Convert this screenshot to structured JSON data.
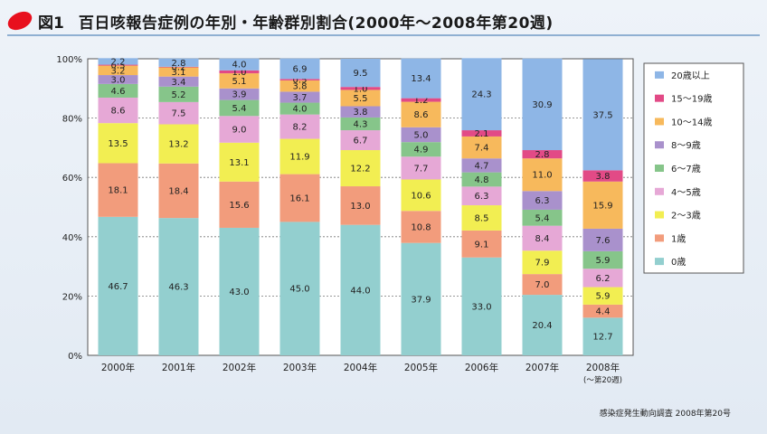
{
  "figure": {
    "label": "図1",
    "title": "百日咳報告症例の年別・年齢群別割合(2000年〜2008年第20週)",
    "source": "感染症発生動向調査 2008年第20号"
  },
  "chart_data": {
    "type": "bar",
    "stacked": true,
    "percent": true,
    "title": "百日咳報告症例の年別・年齢群別割合(2000年〜2008年第20週)",
    "categories": [
      "2000年",
      "2001年",
      "2002年",
      "2003年",
      "2004年",
      "2005年",
      "2006年",
      "2007年",
      "2008年"
    ],
    "category_sublabels": [
      "",
      "",
      "",
      "",
      "",
      "",
      "",
      "",
      "(〜第20週)"
    ],
    "ylim": [
      0,
      100
    ],
    "yticks": [
      "0%",
      "20%",
      "40%",
      "60%",
      "80%",
      "100%"
    ],
    "legend_position": "right",
    "series": [
      {
        "name": "0歳",
        "color": "#93cfcf",
        "values": [
          46.7,
          46.3,
          43.0,
          45.0,
          44.0,
          37.9,
          33.0,
          20.4,
          12.7
        ]
      },
      {
        "name": "1歳",
        "color": "#f29c7c",
        "values": [
          18.1,
          18.4,
          15.6,
          16.1,
          13.0,
          10.8,
          9.1,
          7.0,
          4.4
        ]
      },
      {
        "name": "2〜3歳",
        "color": "#f2ee52",
        "values": [
          13.5,
          13.2,
          13.1,
          11.9,
          12.2,
          10.6,
          8.5,
          7.9,
          5.9
        ]
      },
      {
        "name": "4〜5歳",
        "color": "#e6a8d6",
        "values": [
          8.6,
          7.5,
          9.0,
          8.2,
          6.7,
          7.7,
          6.3,
          8.4,
          6.2
        ]
      },
      {
        "name": "6〜7歳",
        "color": "#86c58a",
        "values": [
          4.6,
          5.2,
          5.4,
          4.0,
          4.3,
          4.9,
          4.8,
          5.4,
          5.9
        ]
      },
      {
        "name": "8〜9歳",
        "color": "#a991cc",
        "values": [
          3.0,
          3.4,
          3.9,
          3.7,
          3.8,
          5.0,
          4.7,
          6.3,
          7.6
        ]
      },
      {
        "name": "10〜14歳",
        "color": "#f7b95c",
        "values": [
          3.2,
          3.1,
          5.1,
          3.8,
          5.5,
          8.6,
          7.4,
          11.0,
          15.9
        ]
      },
      {
        "name": "15〜19歳",
        "color": "#e24a86",
        "values": [
          0.3,
          0.2,
          1.0,
          0.5,
          1.0,
          1.2,
          2.1,
          2.8,
          3.8
        ]
      },
      {
        "name": "20歳以上",
        "color": "#8eb6e6",
        "values": [
          2.2,
          2.8,
          4.0,
          6.9,
          9.5,
          13.4,
          24.3,
          30.9,
          37.5
        ]
      }
    ]
  }
}
